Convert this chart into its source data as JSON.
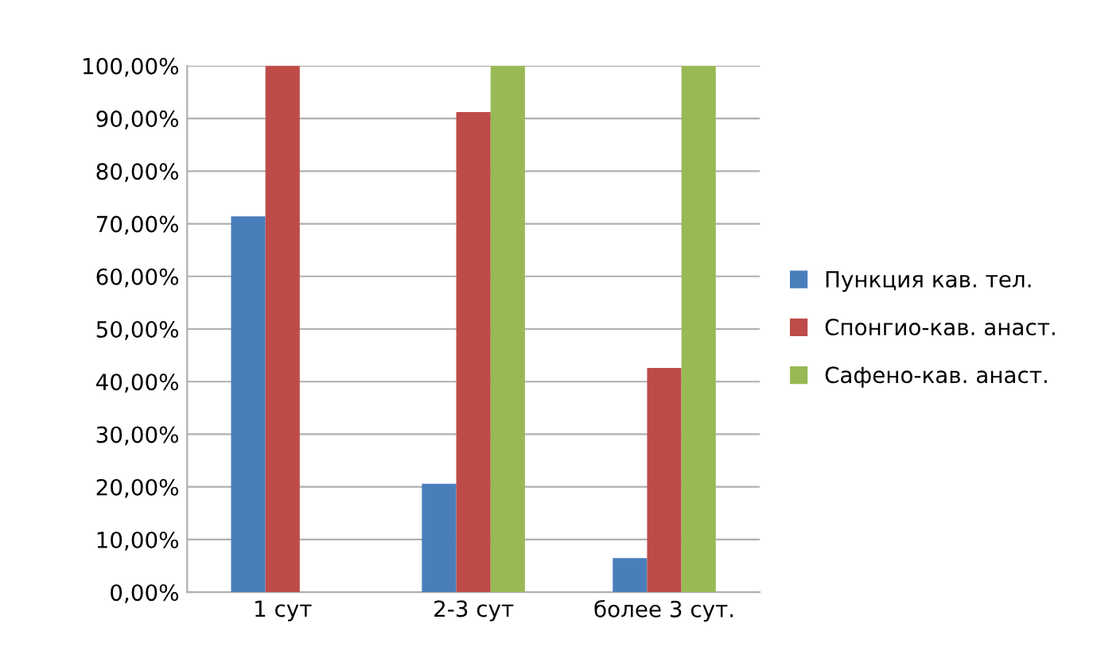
{
  "chart_data": {
    "type": "bar",
    "categories": [
      "1 сут",
      "2-3 сут",
      "более 3 сут."
    ],
    "series": [
      {
        "name": "Пункция кав. тел.",
        "color": "#4a7ebb",
        "values": [
          71.4,
          20.6,
          6.5
        ]
      },
      {
        "name": "Спонгио-кав. анаст.",
        "color": "#be4b48",
        "values": [
          100,
          91.2,
          42.6
        ]
      },
      {
        "name": "Сафено-кав. анаст.",
        "color": "#98b954",
        "values": [
          null,
          100,
          100
        ]
      }
    ],
    "ylim": [
      0,
      100
    ],
    "yticks": [
      {
        "value": 0,
        "label": "0,00%"
      },
      {
        "value": 10,
        "label": "10,00%"
      },
      {
        "value": 20,
        "label": "20,00%"
      },
      {
        "value": 30,
        "label": "30,00%"
      },
      {
        "value": 40,
        "label": "40,00%"
      },
      {
        "value": 50,
        "label": "50,00%"
      },
      {
        "value": 60,
        "label": "60,00%"
      },
      {
        "value": 70,
        "label": "70,00%"
      },
      {
        "value": 80,
        "label": "80,00%"
      },
      {
        "value": 90,
        "label": "90,00%"
      },
      {
        "value": 100,
        "label": "100,00%"
      }
    ],
    "grid": "y",
    "legend": "right"
  }
}
